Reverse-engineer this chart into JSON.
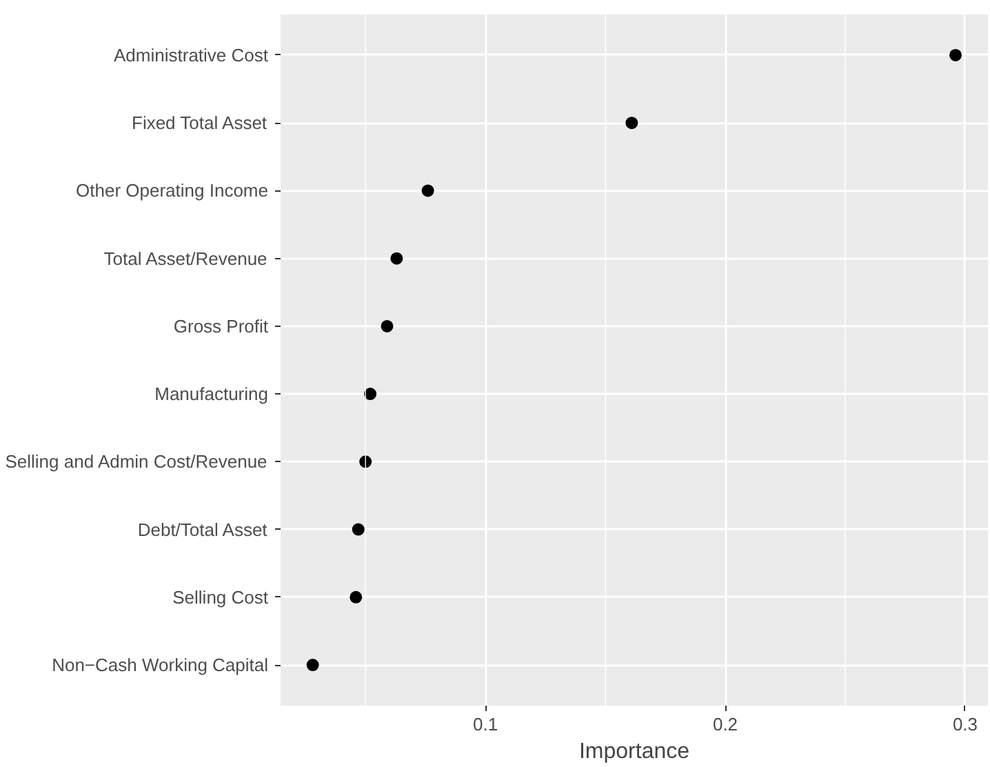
{
  "chart_data": {
    "type": "scatter",
    "orientation": "horizontal",
    "xlabel": "Importance",
    "categories": [
      "Administrative Cost",
      "Fixed Total Asset",
      "Other Operating Income",
      "Total Asset/Revenue",
      "Gross Profit",
      "Manufacturing",
      "Selling and Admin Cost/Revenue",
      "Debt/Total Asset",
      "Selling Cost",
      "Non−Cash Working Capital"
    ],
    "series": [
      {
        "color": "#000000",
        "values": [
          0.296,
          0.161,
          0.076,
          0.063,
          0.059,
          0.052,
          0.05,
          0.047,
          0.046,
          0.028
        ]
      }
    ],
    "xlim": [
      0.0146,
      0.3095
    ],
    "xticks": [
      0.1,
      0.2,
      0.3
    ],
    "grid": true,
    "marker": "circle"
  }
}
